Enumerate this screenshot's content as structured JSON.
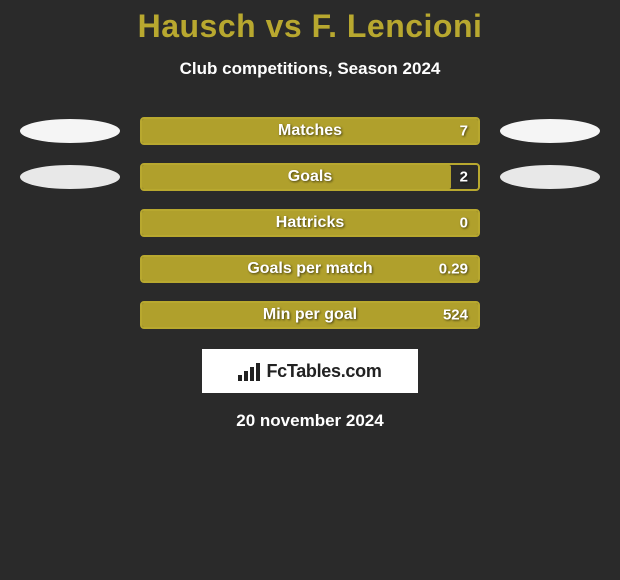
{
  "title": "Hausch vs F. Lencioni",
  "subtitle": "Club competitions, Season 2024",
  "date": "20 november 2024",
  "brand": "FcTables.com",
  "background_color": "#2a2a2a",
  "title_color": "#b8a82f",
  "text_color": "#ffffff",
  "stats_chart": {
    "type": "horizontal-bar",
    "bar_fill_color": "#b0a02c",
    "bar_border_color": "#b8a82f",
    "label_fontsize": 16,
    "value_fontsize": 15,
    "rows": [
      {
        "label": "Matches",
        "value": "7",
        "fill_pct": 100,
        "left_ellipse": "#f5f5f5",
        "right_ellipse": "#f5f5f5"
      },
      {
        "label": "Goals",
        "value": "2",
        "fill_pct": 92,
        "left_ellipse": "#e8e8e8",
        "right_ellipse": "#e8e8e8"
      },
      {
        "label": "Hattricks",
        "value": "0",
        "fill_pct": 100,
        "left_ellipse": null,
        "right_ellipse": null
      },
      {
        "label": "Goals per match",
        "value": "0.29",
        "fill_pct": 100,
        "left_ellipse": null,
        "right_ellipse": null
      },
      {
        "label": "Min per goal",
        "value": "524",
        "fill_pct": 100,
        "left_ellipse": null,
        "right_ellipse": null
      }
    ]
  }
}
